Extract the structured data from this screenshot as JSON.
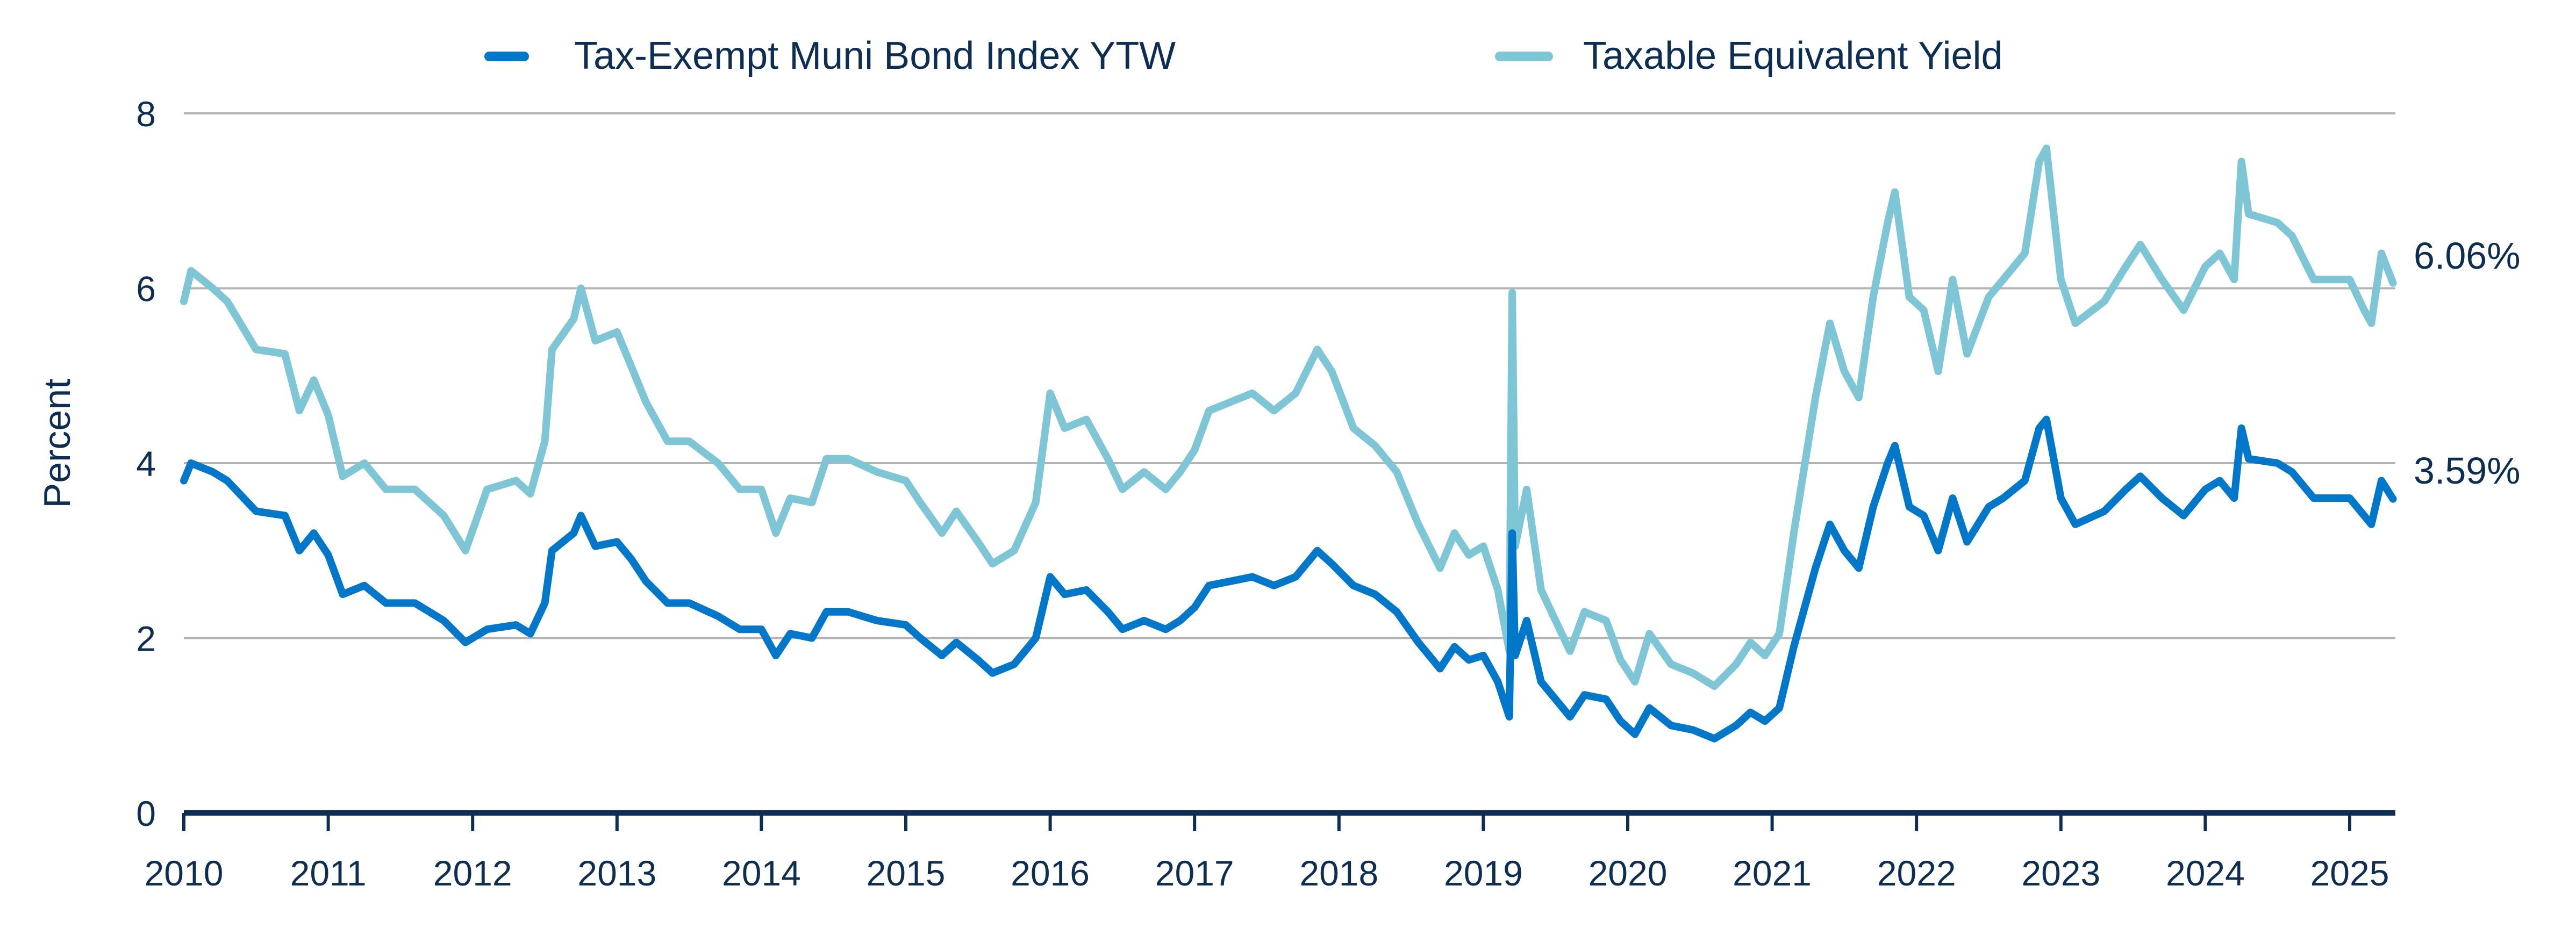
{
  "chart_data": {
    "type": "line",
    "title": "",
    "xlabel": "",
    "ylabel": "Percent",
    "ylim": [
      0,
      8
    ],
    "yticks": [
      "0",
      "2",
      "4",
      "6",
      "8"
    ],
    "xlim": [
      2010,
      2025.3
    ],
    "xticks": [
      "2010",
      "2011",
      "2012",
      "2013",
      "2014",
      "2015",
      "2016",
      "2017",
      "2018",
      "2019",
      "2020",
      "2021",
      "2022",
      "2023",
      "2024",
      "2025"
    ],
    "grid": "horizontal",
    "legend_position": "top",
    "end_labels": [
      "6.06%",
      "3.59%"
    ],
    "x": [
      2010.0,
      2010.05,
      2010.2,
      2010.3,
      2010.5,
      2010.7,
      2010.8,
      2010.9,
      2011.0,
      2011.1,
      2011.25,
      2011.4,
      2011.6,
      2011.8,
      2011.95,
      2012.1,
      2012.3,
      2012.4,
      2012.5,
      2012.55,
      2012.7,
      2012.75,
      2012.85,
      2013.0,
      2013.1,
      2013.2,
      2013.35,
      2013.5,
      2013.7,
      2013.85,
      2014.0,
      2014.1,
      2014.2,
      2014.35,
      2014.45,
      2014.6,
      2014.8,
      2015.0,
      2015.1,
      2015.25,
      2015.35,
      2015.5,
      2015.6,
      2015.75,
      2015.9,
      2016.0,
      2016.1,
      2016.25,
      2016.4,
      2016.5,
      2016.65,
      2016.8,
      2016.9,
      2017.0,
      2017.1,
      2017.25,
      2017.4,
      2017.55,
      2017.7,
      2017.85,
      2017.95,
      2018.1,
      2018.25,
      2018.4,
      2018.55,
      2018.7,
      2018.8,
      2018.9,
      2019.0,
      2019.1,
      2019.18,
      2019.2,
      2019.22,
      2019.3,
      2019.4,
      2019.5,
      2019.6,
      2019.7,
      2019.85,
      2019.95,
      2020.05,
      2020.15,
      2020.3,
      2020.45,
      2020.6,
      2020.75,
      2020.85,
      2020.95,
      2021.05,
      2021.15,
      2021.3,
      2021.4,
      2021.5,
      2021.6,
      2021.7,
      2021.8,
      2021.85,
      2021.95,
      2022.05,
      2022.15,
      2022.25,
      2022.35,
      2022.5,
      2022.6,
      2022.75,
      2022.85,
      2022.9,
      2023.0,
      2023.1,
      2023.3,
      2023.45,
      2023.55,
      2023.7,
      2023.85,
      2024.0,
      2024.1,
      2024.2,
      2024.25,
      2024.3,
      2024.5,
      2024.6,
      2024.75,
      2024.9,
      2025.0,
      2025.1,
      2025.15,
      2025.22,
      2025.3
    ],
    "series": [
      {
        "name": "Tax-Exempt Muni Bond Index YTW",
        "color": "#0077c8",
        "values": [
          3.8,
          4.0,
          3.9,
          3.8,
          3.45,
          3.4,
          3.0,
          3.2,
          2.95,
          2.5,
          2.6,
          2.4,
          2.4,
          2.2,
          1.95,
          2.1,
          2.15,
          2.05,
          2.4,
          3.0,
          3.2,
          3.4,
          3.05,
          3.1,
          2.9,
          2.65,
          2.4,
          2.4,
          2.25,
          2.1,
          2.1,
          1.8,
          2.05,
          2.0,
          2.3,
          2.3,
          2.2,
          2.15,
          2.0,
          1.8,
          1.95,
          1.75,
          1.6,
          1.7,
          2.0,
          2.7,
          2.5,
          2.55,
          2.3,
          2.1,
          2.2,
          2.1,
          2.2,
          2.35,
          2.6,
          2.65,
          2.7,
          2.6,
          2.7,
          3.0,
          2.85,
          2.6,
          2.5,
          2.3,
          1.95,
          1.65,
          1.9,
          1.75,
          1.8,
          1.5,
          1.1,
          3.2,
          1.8,
          2.2,
          1.5,
          1.3,
          1.1,
          1.35,
          1.3,
          1.05,
          0.9,
          1.2,
          1.0,
          0.95,
          0.85,
          1.0,
          1.15,
          1.05,
          1.2,
          1.9,
          2.8,
          3.3,
          3.0,
          2.8,
          3.5,
          4.0,
          4.2,
          3.5,
          3.4,
          3.0,
          3.6,
          3.1,
          3.5,
          3.6,
          3.8,
          4.4,
          4.5,
          3.6,
          3.3,
          3.45,
          3.7,
          3.85,
          3.6,
          3.4,
          3.7,
          3.8,
          3.6,
          4.4,
          4.05,
          4.0,
          3.9,
          3.6,
          3.6,
          3.6,
          3.4,
          3.3,
          3.8,
          3.59
        ]
      },
      {
        "name": "Taxable Equivalent Yield",
        "color": "#7ec6d6",
        "values": [
          5.85,
          6.2,
          6.0,
          5.85,
          5.3,
          5.25,
          4.6,
          4.95,
          4.55,
          3.85,
          4.0,
          3.7,
          3.7,
          3.4,
          3.0,
          3.7,
          3.8,
          3.65,
          4.25,
          5.3,
          5.65,
          6.0,
          5.4,
          5.5,
          5.1,
          4.7,
          4.25,
          4.25,
          4.0,
          3.7,
          3.7,
          3.2,
          3.6,
          3.55,
          4.05,
          4.05,
          3.9,
          3.8,
          3.55,
          3.2,
          3.45,
          3.1,
          2.85,
          3.0,
          3.55,
          4.8,
          4.4,
          4.5,
          4.05,
          3.7,
          3.9,
          3.7,
          3.9,
          4.15,
          4.6,
          4.7,
          4.8,
          4.6,
          4.8,
          5.3,
          5.05,
          4.4,
          4.2,
          3.9,
          3.3,
          2.8,
          3.2,
          2.95,
          3.05,
          2.55,
          1.85,
          5.95,
          3.05,
          3.7,
          2.55,
          2.2,
          1.85,
          2.3,
          2.2,
          1.75,
          1.5,
          2.05,
          1.7,
          1.6,
          1.45,
          1.7,
          1.95,
          1.8,
          2.05,
          3.2,
          4.75,
          5.6,
          5.05,
          4.75,
          5.9,
          6.75,
          7.1,
          5.9,
          5.75,
          5.05,
          6.1,
          5.25,
          5.9,
          6.1,
          6.4,
          7.45,
          7.6,
          6.1,
          5.6,
          5.85,
          6.25,
          6.5,
          6.1,
          5.75,
          6.25,
          6.4,
          6.1,
          7.45,
          6.85,
          6.75,
          6.6,
          6.1,
          6.1,
          6.1,
          5.75,
          5.6,
          6.4,
          6.06
        ]
      }
    ]
  },
  "colors": {
    "text": "#0d2d52",
    "grid": "#b4b4b4",
    "axis": "#0d2d52"
  }
}
